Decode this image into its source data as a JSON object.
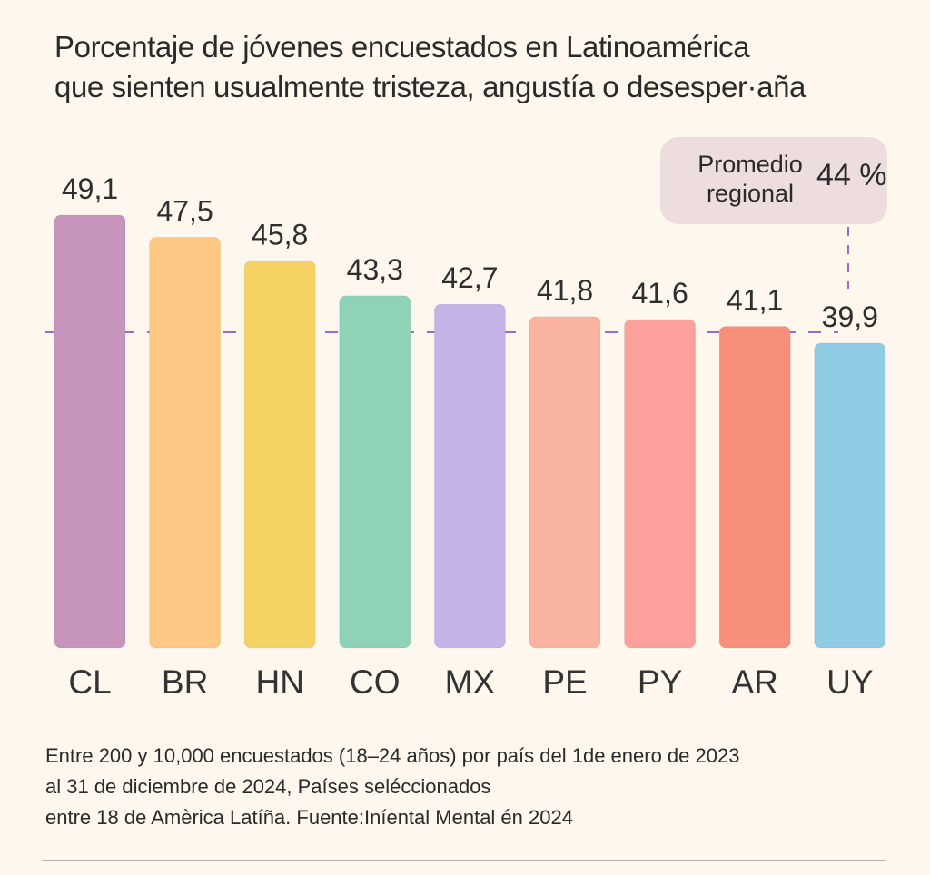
{
  "title_lines": [
    "Porcentaje de jóvenes encuestados en Latinoamérica",
    "que sienten usualmente tristeza, angustía o desesper·aña"
  ],
  "callout": {
    "label_lines": [
      "Promedio",
      "regional"
    ],
    "value": "44 %"
  },
  "footnote_lines": [
    "Entre 200 y 10,000 encuestados (18–24 años) por país del 1de enero de 2023",
    "al 31 de diciembre de 2024, Países seléccionados",
    "entre 18 de Amèrica Latíña. Fuente:Iníental Mental én 2024"
  ],
  "chart_data": {
    "type": "bar",
    "title": "Porcentaje de jóvenes encuestados en Latinoamérica que sienten usualmente tristeza, angustía o desesper·aña",
    "xlabel": "",
    "ylabel": "",
    "categories": [
      "CL",
      "BR",
      "HN",
      "CO",
      "MX",
      "PE",
      "PY",
      "AR",
      "UY"
    ],
    "values": [
      49.1,
      47.5,
      45.8,
      43.3,
      42.7,
      41.8,
      41.6,
      41.1,
      39.9
    ],
    "value_labels": [
      "49,1",
      "47,5",
      "45,8",
      "43,3",
      "42,7",
      "41,8",
      "41,6",
      "41,1",
      "39,9"
    ],
    "colors": [
      "#c794bb",
      "#fdc784",
      "#f5d264",
      "#8ed2b8",
      "#c5b3e8",
      "#f9b3a0",
      "#fba09b",
      "#f78f7b",
      "#8fcbe4"
    ],
    "reference_line": {
      "value": 44,
      "label": "Promedio regional",
      "color": "#9a6ac9",
      "style": "dashed"
    },
    "ylim": [
      0,
      49.1
    ],
    "grid": false,
    "legend": "none"
  }
}
